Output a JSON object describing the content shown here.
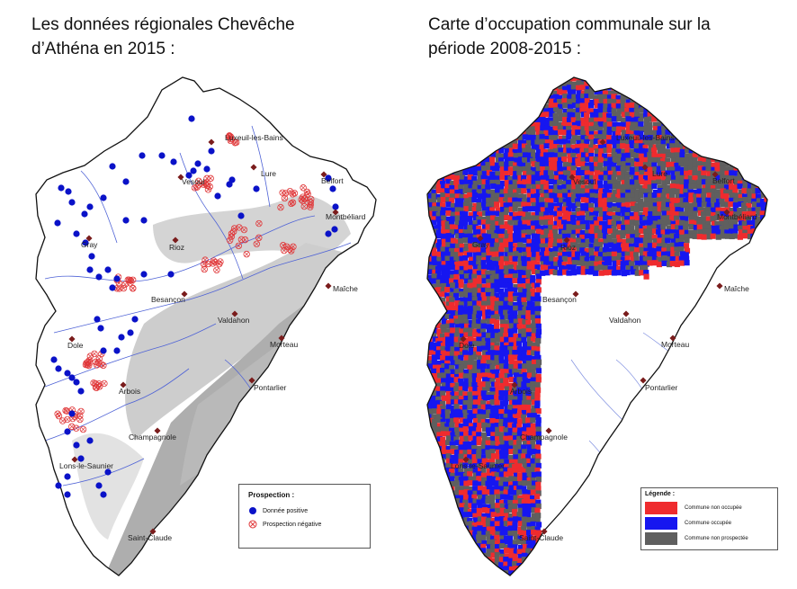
{
  "titles": {
    "left": "Les données régionales Chevêche d’Athéna en 2015 :",
    "right": "Carte d’occupation communale sur la période 2008-2015 :"
  },
  "cities": [
    "Luxeuil-les-Bains",
    "Lure",
    "Belfort",
    "Vesoul",
    "Montbéliard",
    "Gray",
    "Rioz",
    "Maîche",
    "Besançon",
    "Valdahon",
    "Morteau",
    "Dole",
    "Arbois",
    "Pontarlier",
    "Champagnole",
    "Lons-le-Saunier",
    "Saint-Claude"
  ],
  "legend_left": {
    "title": "Prospection :",
    "items": [
      {
        "label": "Donnée positive",
        "symbol": "filled-blue-circle",
        "color": "#0a12c8"
      },
      {
        "label": "Prospection négative",
        "symbol": "red-circle-cross",
        "color": "#e0393b"
      }
    ]
  },
  "legend_right": {
    "title": "Légende :",
    "items": [
      {
        "label": "Commune non occupée",
        "color": "#ef2b2e"
      },
      {
        "label": "Commune occupée",
        "color": "#1616f0"
      },
      {
        "label": "Commune non prospectée",
        "color": "#5f5f5f"
      }
    ]
  },
  "colors": {
    "relief_light": "#cbcbcb",
    "relief_dark": "#a9a9a9",
    "rivers": "#4f63d6",
    "city_marker": "#7a1c1c"
  }
}
